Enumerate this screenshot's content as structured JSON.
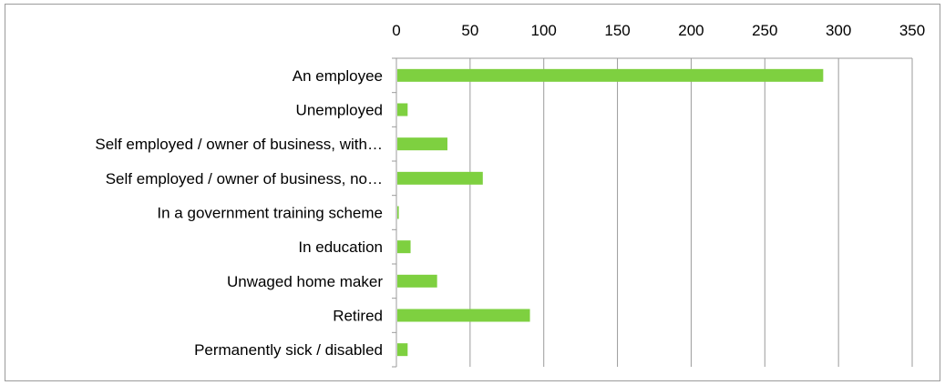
{
  "chart_data": {
    "type": "bar",
    "orientation": "horizontal",
    "categories": [
      "An employee",
      "Unemployed",
      "Self employed / owner of business, with…",
      "Self employed / owner of business, no…",
      "In a government training scheme",
      "In education",
      "Unwaged home maker",
      "Retired",
      "Permanently sick / disabled"
    ],
    "values": [
      289,
      7,
      34,
      58,
      1,
      9,
      27,
      90,
      7
    ],
    "xlim": [
      0,
      350
    ],
    "xticks": [
      "0",
      "50",
      "100",
      "150",
      "200",
      "250",
      "300",
      "350"
    ],
    "x_axis_position": "top",
    "grid": true,
    "legend": "none",
    "bar_color": "#7ed040",
    "grid_color": "#9b9b9b",
    "title": "",
    "xlabel": "",
    "ylabel": ""
  }
}
